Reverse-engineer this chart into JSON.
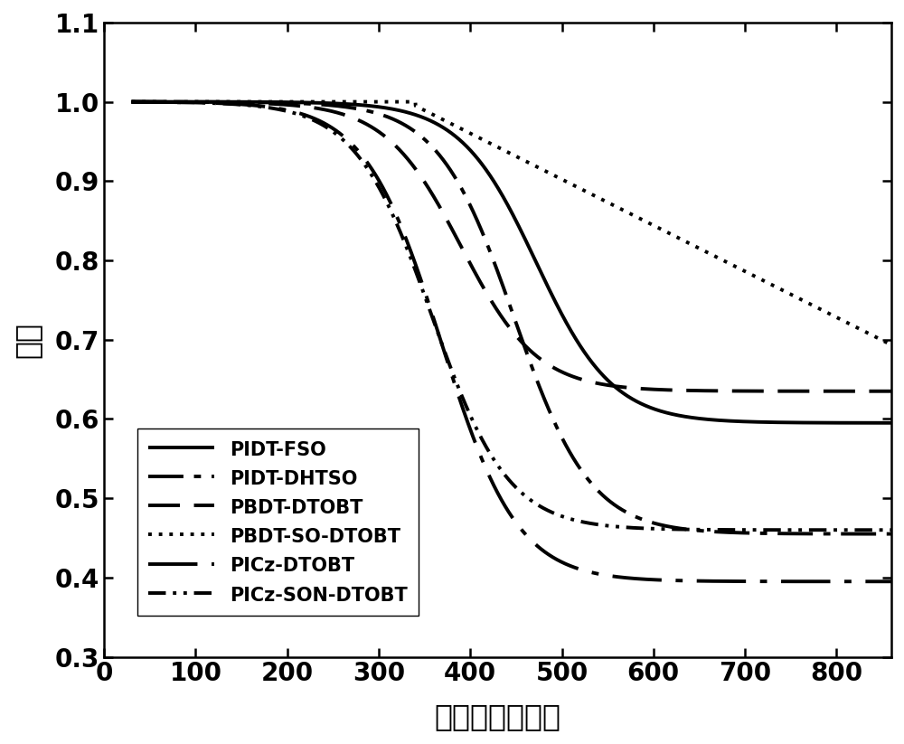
{
  "title": "",
  "xlabel": "温度（摄氏度）",
  "ylabel": "质量",
  "xlim": [
    0,
    860
  ],
  "ylim": [
    0.3,
    1.1
  ],
  "xticks": [
    0,
    100,
    200,
    300,
    400,
    500,
    600,
    700,
    800
  ],
  "yticks": [
    0.3,
    0.4,
    0.5,
    0.6,
    0.7,
    0.8,
    0.9,
    1.0,
    1.1
  ],
  "curves": [
    {
      "label": "PIDT-FSO",
      "style": "solid",
      "lw": 2.8,
      "midpoint": 472,
      "steepness": 0.024,
      "end_val": 0.595
    },
    {
      "label": "PIDT-DHTSO",
      "style": "long_dashdot",
      "lw": 2.8,
      "midpoint": 448,
      "steepness": 0.024,
      "end_val": 0.455
    },
    {
      "label": "PBDT-DTOBT",
      "style": "dashed",
      "lw": 2.8,
      "midpoint": 390,
      "steepness": 0.024,
      "end_val": 0.635
    },
    {
      "label": "PBDT-SO-DTOBT",
      "style": "densely_dotted",
      "lw": 2.8,
      "midpoint": 340,
      "steepness": 0.028,
      "end_val": 0.515,
      "linear_slope": -0.00058,
      "linear_start": 340,
      "linear_start_val": 0.995
    },
    {
      "label": "PICz-DTOBT",
      "style": "loose_dashdot",
      "lw": 2.8,
      "midpoint": 368,
      "steepness": 0.024,
      "end_val": 0.395
    },
    {
      "label": "PICz-SON-DTOBT",
      "style": "dashdotdot",
      "lw": 2.8,
      "midpoint": 358,
      "steepness": 0.024,
      "end_val": 0.46
    }
  ],
  "fontsize_label": 24,
  "fontsize_tick": 20,
  "fontsize_legend": 15,
  "background_color": "#ffffff",
  "linecolor": "#000000"
}
